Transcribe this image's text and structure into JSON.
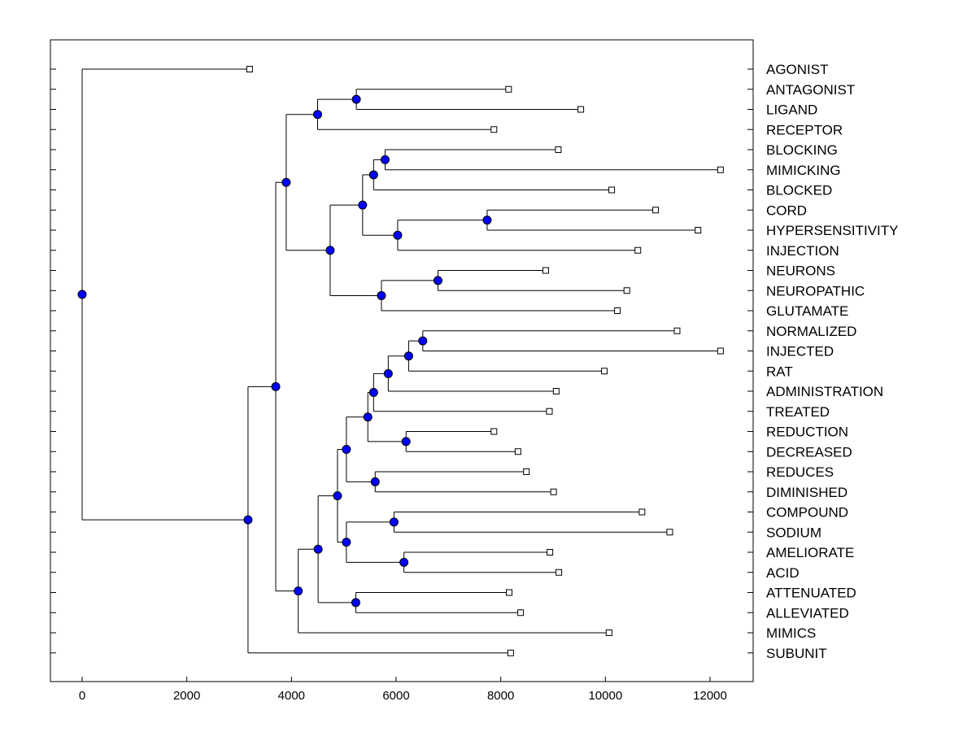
{
  "chart_data": {
    "type": "dendrogram",
    "orientation": "horizontal",
    "xlim": [
      -600,
      12800
    ],
    "xticks": [
      0,
      2000,
      4000,
      6000,
      8000,
      10000,
      12000
    ],
    "xtick_labels": [
      "0",
      "2000",
      "4000",
      "6000",
      "8000",
      "10000",
      "12000"
    ],
    "leaves": [
      {
        "label": "AGONIST",
        "x": 3200
      },
      {
        "label": "ANTAGONIST",
        "x": 8150
      },
      {
        "label": "LIGAND",
        "x": 9530
      },
      {
        "label": "RECEPTOR",
        "x": 7870
      },
      {
        "label": "BLOCKING",
        "x": 9100
      },
      {
        "label": "MIMICKING",
        "x": 12200
      },
      {
        "label": "BLOCKED",
        "x": 10120
      },
      {
        "label": "CORD",
        "x": 10960
      },
      {
        "label": "HYPERSENSITIVITY",
        "x": 11770
      },
      {
        "label": "INJECTION",
        "x": 10620
      },
      {
        "label": "NEURONS",
        "x": 8860
      },
      {
        "label": "NEUROPATHIC",
        "x": 10410
      },
      {
        "label": "GLUTAMATE",
        "x": 10230
      },
      {
        "label": "NORMALIZED",
        "x": 11370
      },
      {
        "label": "INJECTED",
        "x": 12200
      },
      {
        "label": "RAT",
        "x": 9980
      },
      {
        "label": "ADMINISTRATION",
        "x": 9060
      },
      {
        "label": "TREATED",
        "x": 8930
      },
      {
        "label": "REDUCTION",
        "x": 7870
      },
      {
        "label": "DECREASED",
        "x": 8330
      },
      {
        "label": "REDUCES",
        "x": 8490
      },
      {
        "label": "DIMINISHED",
        "x": 9010
      },
      {
        "label": "COMPOUND",
        "x": 10700
      },
      {
        "label": "SODIUM",
        "x": 11230
      },
      {
        "label": "AMELIORATE",
        "x": 8940
      },
      {
        "label": "ACID",
        "x": 9110
      },
      {
        "label": "ATTENUATED",
        "x": 8160
      },
      {
        "label": "ALLEVIATED",
        "x": 8380
      },
      {
        "label": "MIMICS",
        "x": 10070
      },
      {
        "label": "SUBUNIT",
        "x": 8190
      }
    ],
    "merges": [
      {
        "id": "n1",
        "x": 5240,
        "children": [
          "ANTAGONIST",
          "LIGAND"
        ]
      },
      {
        "id": "n2",
        "x": 4500,
        "children": [
          "n1",
          "RECEPTOR"
        ]
      },
      {
        "id": "n3",
        "x": 5790,
        "children": [
          "BLOCKING",
          "MIMICKING"
        ]
      },
      {
        "id": "n4",
        "x": 5570,
        "children": [
          "n3",
          "BLOCKED"
        ]
      },
      {
        "id": "n5",
        "x": 7740,
        "children": [
          "CORD",
          "HYPERSENSITIVITY"
        ]
      },
      {
        "id": "n6",
        "x": 6030,
        "children": [
          "n5",
          "INJECTION"
        ]
      },
      {
        "id": "n7",
        "x": 5360,
        "children": [
          "n4",
          "n6"
        ]
      },
      {
        "id": "n8",
        "x": 6800,
        "children": [
          "NEURONS",
          "NEUROPATHIC"
        ]
      },
      {
        "id": "n9",
        "x": 5720,
        "children": [
          "n8",
          "GLUTAMATE"
        ]
      },
      {
        "id": "n10",
        "x": 4740,
        "children": [
          "n7",
          "n9"
        ]
      },
      {
        "id": "n11",
        "x": 3900,
        "children": [
          "n2",
          "n10"
        ]
      },
      {
        "id": "n12",
        "x": 6510,
        "children": [
          "NORMALIZED",
          "INJECTED"
        ]
      },
      {
        "id": "n13",
        "x": 6240,
        "children": [
          "n12",
          "RAT"
        ]
      },
      {
        "id": "n14",
        "x": 5850,
        "children": [
          "n13",
          "ADMINISTRATION"
        ]
      },
      {
        "id": "n15",
        "x": 5570,
        "children": [
          "n14",
          "TREATED"
        ]
      },
      {
        "id": "n16",
        "x": 6190,
        "children": [
          "REDUCTION",
          "DECREASED"
        ]
      },
      {
        "id": "n17",
        "x": 5460,
        "children": [
          "n15",
          "n16"
        ]
      },
      {
        "id": "n18",
        "x": 5600,
        "children": [
          "REDUCES",
          "DIMINISHED"
        ]
      },
      {
        "id": "n19",
        "x": 5050,
        "children": [
          "n17",
          "n18"
        ]
      },
      {
        "id": "n20",
        "x": 5960,
        "children": [
          "COMPOUND",
          "SODIUM"
        ]
      },
      {
        "id": "n21",
        "x": 6150,
        "children": [
          "AMELIORATE",
          "ACID"
        ]
      },
      {
        "id": "n22",
        "x": 5050,
        "children": [
          "n20",
          "n21"
        ]
      },
      {
        "id": "n23",
        "x": 4880,
        "children": [
          "n19",
          "n22"
        ]
      },
      {
        "id": "n24",
        "x": 5230,
        "children": [
          "ATTENUATED",
          "ALLEVIATED"
        ]
      },
      {
        "id": "n25",
        "x": 4510,
        "children": [
          "n23",
          "n24"
        ]
      },
      {
        "id": "n26",
        "x": 4130,
        "children": [
          "n25",
          "MIMICS"
        ]
      },
      {
        "id": "n27",
        "x": 3700,
        "children": [
          "n11",
          "n26"
        ]
      },
      {
        "id": "n28",
        "x": 3170,
        "children": [
          "n27",
          "SUBUNIT"
        ]
      },
      {
        "id": "n29",
        "x": 0,
        "children": [
          "AGONIST",
          "n28"
        ]
      }
    ],
    "colors": {
      "node_fill": "#0000ff",
      "node_stroke": "#000000",
      "leaf_fill": "#ffffff",
      "line": "#000000",
      "frame": "#000000"
    },
    "title": "",
    "xlabel": "",
    "ylabel": "",
    "grid": false,
    "legend": "none"
  }
}
